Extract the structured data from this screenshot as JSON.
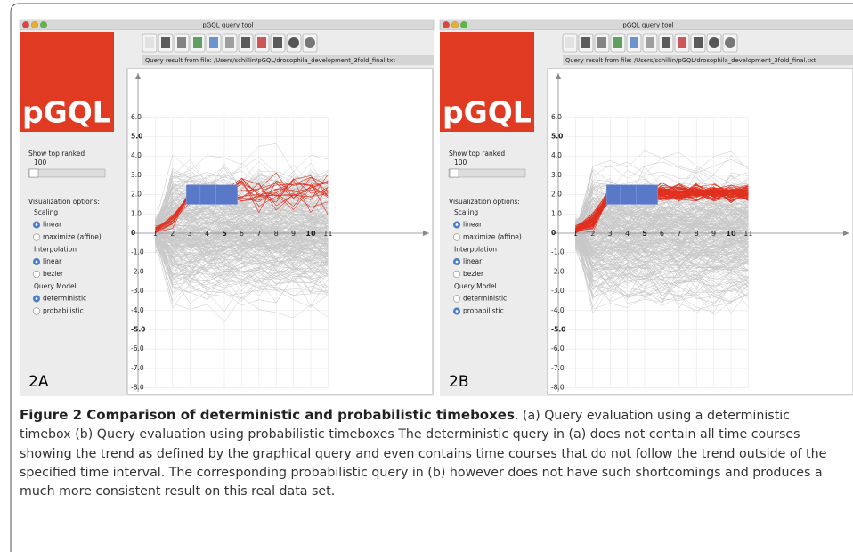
{
  "panels": [
    {
      "window_title": "pGQL query tool",
      "file_label": "Query result from file: /Users/schillin/pGQL/drosophila_development_3fold_final.txt",
      "logo": "pGQL",
      "show_top_ranked": "Show top ranked",
      "top_value": "100",
      "options_title": "Visualization options:",
      "groups": [
        {
          "title": "Scaling",
          "options": [
            "linear",
            "maximize (affine)"
          ],
          "selected": 0
        },
        {
          "title": "Interpolation",
          "options": [
            "linear",
            "bezier"
          ],
          "selected": 0
        },
        {
          "title": "Query Model",
          "options": [
            "deterministic",
            "probabilistic"
          ],
          "selected": 0
        }
      ],
      "yticks": [
        "6.0",
        "5.0",
        "4.0",
        "3.0",
        "2.0",
        "1.0",
        "0",
        "-1.0",
        "-2.0",
        "-3.0",
        "-4.0",
        "-5.0",
        "-6.0",
        "-7.0",
        "-8.0"
      ],
      "xticks": [
        "1",
        "2",
        "3",
        "4",
        "5",
        "6",
        "7",
        "8",
        "9",
        "10",
        "11"
      ],
      "panel_label": "2A"
    },
    {
      "window_title": "pGQL query tool",
      "file_label": "Query result from file: /Users/schillin/pGQL/drosophila_development_3fold_final.txt",
      "logo": "pGQL",
      "show_top_ranked": "Show top ranked",
      "top_value": "100",
      "options_title": "Visualization options:",
      "groups": [
        {
          "title": "Scaling",
          "options": [
            "linear",
            "maximize (affine)"
          ],
          "selected": 0
        },
        {
          "title": "Interpolation",
          "options": [
            "linear",
            "bezier"
          ],
          "selected": 0
        },
        {
          "title": "Query Model",
          "options": [
            "deterministic",
            "probabilistic"
          ],
          "selected": 1
        }
      ],
      "yticks": [
        "6.0",
        "5.0",
        "4.0",
        "3.0",
        "2.0",
        "1.0",
        "0",
        "-1.0",
        "-2.0",
        "-3.0",
        "-4.0",
        "-5.0",
        "-6.0",
        "-7.0",
        "-8.0"
      ],
      "xticks": [
        "1",
        "2",
        "3",
        "4",
        "5",
        "6",
        "7",
        "8",
        "9",
        "10",
        "11"
      ],
      "panel_label": "2B"
    }
  ],
  "caption": {
    "title": "Figure 2 Comparison of deterministic and probabilistic timeboxes",
    "text": ". (a) Query evaluation using a deterministic timebox (b) Query evaluation using probabilistic timeboxes The deterministic query in (a) does not contain all time courses showing the trend as defined by the graphical query and even contains time courses that do not follow the trend outside of the specified time interval. The corresponding probabilistic query in (b) however does not have such shortcomings and produces a much more consistent result on this real data set."
  }
}
